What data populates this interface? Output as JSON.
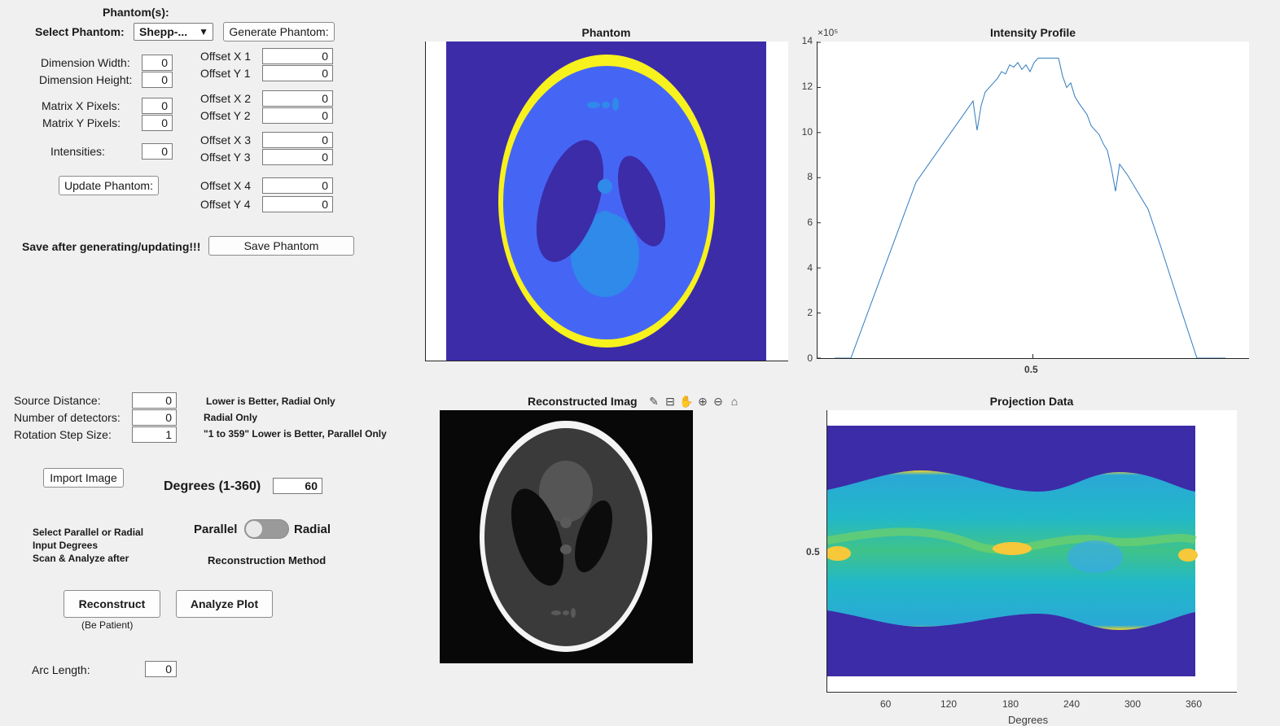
{
  "phantom_panel": {
    "header": "Phantom(s):",
    "select_label": "Select Phantom:",
    "select_value": "Shepp-...",
    "generate_button": "Generate Phantom:",
    "dimension_width_label": "Dimension Width:",
    "dimension_width_value": "0",
    "dimension_height_label": "Dimension Height:",
    "dimension_height_value": "0",
    "matrix_x_label": "Matrix X Pixels:",
    "matrix_x_value": "0",
    "matrix_y_label": "Matrix Y Pixels:",
    "matrix_y_value": "0",
    "intensities_label": "Intensities:",
    "intensities_value": "0",
    "update_button": "Update Phantom:",
    "offsets": [
      {
        "label": "Offset X 1",
        "value": "0"
      },
      {
        "label": "Offset Y 1",
        "value": "0"
      },
      {
        "label": "Offset X 2",
        "value": "0"
      },
      {
        "label": "Offset Y 2",
        "value": "0"
      },
      {
        "label": "Offset X 3",
        "value": "0"
      },
      {
        "label": "Offset Y 3",
        "value": "0"
      },
      {
        "label": "Offset X 4",
        "value": "0"
      },
      {
        "label": "Offset Y 4",
        "value": "0"
      }
    ],
    "save_note": "Save after generating/updating!!!",
    "save_button": "Save Phantom"
  },
  "scan_panel": {
    "source_distance_label": "Source Distance:",
    "source_distance_value": "0",
    "source_distance_note": "Lower is Better, Radial Only",
    "detectors_label": "Number of detectors:",
    "detectors_value": "0",
    "detectors_note": "Radial Only",
    "rotation_label": "Rotation Step Size:",
    "rotation_value": "1",
    "rotation_note": "\"1 to 359\" Lower is Better, Parallel Only",
    "import_button": "Import Image",
    "degrees_label": "Degrees (1-360)",
    "degrees_value": "60",
    "instructions": [
      "Select Parallel or Radial",
      "Input Degrees",
      "Scan & Analyze after"
    ],
    "toggle_left": "Parallel",
    "toggle_right": "Radial",
    "method_label": "Reconstruction Method",
    "reconstruct_button": "Reconstruct",
    "reconstruct_note": "(Be Patient)",
    "analyze_button": "Analyze Plot",
    "arc_length_label": "Arc Length:",
    "arc_length_value": "0"
  },
  "phantom_axes": {
    "title": "Phantom"
  },
  "reconstructed_axes": {
    "title": "Reconstructed Imag"
  },
  "projection_axes": {
    "title": "Projection Data",
    "y_tick_label": "0.5",
    "x_ticks": [
      "60",
      "120",
      "180",
      "240",
      "300",
      "360"
    ],
    "xlabel": "Degrees"
  },
  "toolbar_icons": [
    "brush-icon",
    "datatip-icon",
    "pan-icon",
    "zoom-in-icon",
    "zoom-out-icon",
    "home-icon"
  ],
  "chart_data": {
    "type": "line",
    "title": "Intensity Profile",
    "exponent_label": "×10⁵",
    "ylim": [
      0,
      14
    ],
    "y_ticks": [
      "0",
      "2",
      "4",
      "6",
      "8",
      "10",
      "12",
      "14"
    ],
    "x_tick_label": "0.5",
    "series": [
      {
        "color": "#2f7bbf",
        "x": [
          0.0,
          0.04,
          0.2,
          0.34,
          0.35,
          0.36,
          0.37,
          0.39,
          0.4,
          0.41,
          0.42,
          0.43,
          0.44,
          0.45,
          0.46,
          0.47,
          0.48,
          0.49,
          0.5,
          0.51,
          0.52,
          0.53,
          0.54,
          0.55,
          0.56,
          0.57,
          0.58,
          0.59,
          0.6,
          0.62,
          0.63,
          0.65,
          0.66,
          0.67,
          0.68,
          0.69,
          0.7,
          0.72,
          0.75,
          0.77,
          0.8,
          0.85,
          0.89,
          0.93,
          0.96
        ],
        "values": [
          0.0,
          0.0,
          7.8,
          11.4,
          10.1,
          11.2,
          11.8,
          12.2,
          12.4,
          12.7,
          12.6,
          13.0,
          12.9,
          13.1,
          12.8,
          13.0,
          12.7,
          13.1,
          13.3,
          13.3,
          13.3,
          13.3,
          13.3,
          13.3,
          12.5,
          12.0,
          12.2,
          11.6,
          11.3,
          10.8,
          10.3,
          9.9,
          9.5,
          9.2,
          8.4,
          7.4,
          8.6,
          8.1,
          7.2,
          6.6,
          5.0,
          2.2,
          0.0,
          0.0,
          0.0
        ]
      }
    ]
  }
}
